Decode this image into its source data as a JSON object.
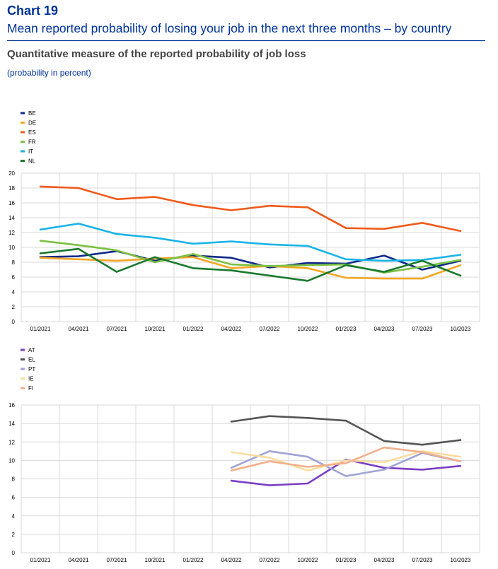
{
  "header": {
    "chart_number": "Chart 19",
    "title": "Mean reported probability of losing your job in the next three months – by country",
    "subtitle": "Quantitative measure of the reported probability of job loss",
    "unit": "(probability in percent)"
  },
  "chart_data": [
    {
      "type": "line",
      "x": [
        "01/2021",
        "04/2021",
        "07/2021",
        "10/2021",
        "01/2022",
        "04/2022",
        "07/2022",
        "10/2022",
        "01/2023",
        "04/2023",
        "07/2023",
        "10/2023"
      ],
      "ylim": [
        0,
        20
      ],
      "yticks": [
        0,
        2,
        4,
        6,
        8,
        10,
        12,
        14,
        16,
        18,
        20
      ],
      "grid": true,
      "legend_position": "top-left",
      "series": [
        {
          "name": "BE",
          "color": "#0e2a8a",
          "values": [
            8.7,
            8.8,
            9.5,
            8.2,
            8.9,
            8.6,
            7.3,
            7.9,
            7.8,
            8.9,
            7.0,
            8.2
          ]
        },
        {
          "name": "DE",
          "color": "#f5a623",
          "values": [
            8.6,
            8.4,
            8.2,
            8.5,
            8.7,
            7.2,
            7.5,
            7.2,
            5.9,
            5.8,
            5.8,
            7.6
          ]
        },
        {
          "name": "ES",
          "color": "#f15a1a",
          "values": [
            18.2,
            18.0,
            16.5,
            16.8,
            15.7,
            15.0,
            15.6,
            15.4,
            12.6,
            12.5,
            13.3,
            12.2
          ]
        },
        {
          "name": "FR",
          "color": "#7ac142",
          "values": [
            10.9,
            10.3,
            9.6,
            8.0,
            9.1,
            7.7,
            7.5,
            7.6,
            7.7,
            6.6,
            7.4,
            8.3
          ]
        },
        {
          "name": "IT",
          "color": "#19b4e8",
          "values": [
            12.4,
            13.2,
            11.8,
            11.3,
            10.5,
            10.8,
            10.4,
            10.2,
            8.4,
            8.2,
            8.3,
            9.0
          ]
        },
        {
          "name": "NL",
          "color": "#1a7a2e",
          "values": [
            9.2,
            9.8,
            6.7,
            8.7,
            7.2,
            6.9,
            6.2,
            5.5,
            7.6,
            6.7,
            8.2,
            6.2
          ]
        }
      ]
    },
    {
      "type": "line",
      "x": [
        "01/2021",
        "04/2021",
        "07/2021",
        "10/2021",
        "01/2022",
        "04/2022",
        "07/2022",
        "10/2022",
        "01/2023",
        "04/2023",
        "07/2023",
        "10/2023"
      ],
      "ylim": [
        0,
        16
      ],
      "yticks": [
        0,
        2,
        4,
        6,
        8,
        10,
        12,
        14,
        16
      ],
      "grid": true,
      "legend_position": "top-left",
      "series": [
        {
          "name": "AT",
          "color": "#7b3fc4",
          "values": [
            null,
            null,
            null,
            null,
            null,
            7.8,
            7.3,
            7.5,
            10.1,
            9.2,
            9.0,
            9.4
          ]
        },
        {
          "name": "EL",
          "color": "#555555",
          "values": [
            null,
            null,
            null,
            null,
            null,
            14.2,
            14.8,
            14.6,
            14.3,
            12.1,
            11.7,
            12.2
          ]
        },
        {
          "name": "PT",
          "color": "#9fa3d6",
          "values": [
            null,
            null,
            null,
            null,
            null,
            9.2,
            11.0,
            10.4,
            8.3,
            9.0,
            10.8,
            9.9
          ]
        },
        {
          "name": "IE",
          "color": "#fcdc9e",
          "values": [
            null,
            null,
            null,
            null,
            null,
            10.9,
            10.3,
            8.9,
            10.0,
            9.8,
            11.0,
            10.4
          ]
        },
        {
          "name": "FI",
          "color": "#f2b08b",
          "values": [
            null,
            null,
            null,
            null,
            null,
            8.9,
            9.9,
            9.3,
            9.7,
            11.4,
            10.9,
            9.9
          ]
        }
      ]
    }
  ]
}
